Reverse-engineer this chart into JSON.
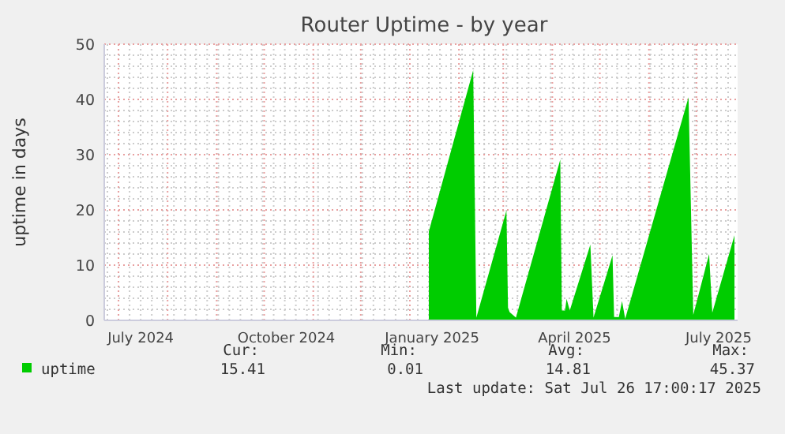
{
  "chart_data": {
    "type": "area",
    "title": "Router Uptime - by year",
    "ylabel": "uptime in days",
    "xlim": [
      "2024-06-22",
      "2025-07-27"
    ],
    "xticks": [
      {
        "value": "2024-07-15",
        "label": "July 2024"
      },
      {
        "value": "2024-10-15",
        "label": "October 2024"
      },
      {
        "value": "2025-01-15",
        "label": "January 2025"
      },
      {
        "value": "2025-04-15",
        "label": "April 2025"
      },
      {
        "value": "2025-07-15",
        "label": "July 2025"
      }
    ],
    "ylim": [
      0,
      50
    ],
    "yticks": [
      0,
      10,
      20,
      30,
      40,
      50
    ],
    "grid": true,
    "legend": "bottom left",
    "series": [
      {
        "name": "uptime",
        "color": "#00cc00",
        "x": [
          "2025-01-13",
          "2025-02-10",
          "2025-02-12",
          "2025-03-03",
          "2025-03-04",
          "2025-03-05",
          "2025-03-07",
          "2025-03-09",
          "2025-04-06",
          "2025-04-07",
          "2025-04-09",
          "2025-04-10",
          "2025-04-12",
          "2025-04-25",
          "2025-04-27",
          "2025-05-09",
          "2025-05-10",
          "2025-05-13",
          "2025-05-15",
          "2025-05-17",
          "2025-06-26",
          "2025-06-29",
          "2025-07-09",
          "2025-07-11",
          "2025-07-25"
        ],
        "values": [
          16.1,
          45.3,
          0.5,
          19.9,
          2.3,
          1.5,
          1.0,
          0.5,
          29.1,
          1.8,
          1.8,
          3.9,
          1.8,
          13.7,
          0.5,
          11.8,
          0.6,
          0.6,
          3.5,
          0.3,
          40.4,
          1.0,
          12.0,
          1.4,
          15.4
        ]
      }
    ],
    "annotations": [
      "Cur:",
      "Min:",
      "Avg:",
      "Max:",
      "15.41",
      "0.01",
      "14.81",
      "45.37",
      "Last update: Sat Jul 26 17:00:17 2025"
    ]
  }
}
